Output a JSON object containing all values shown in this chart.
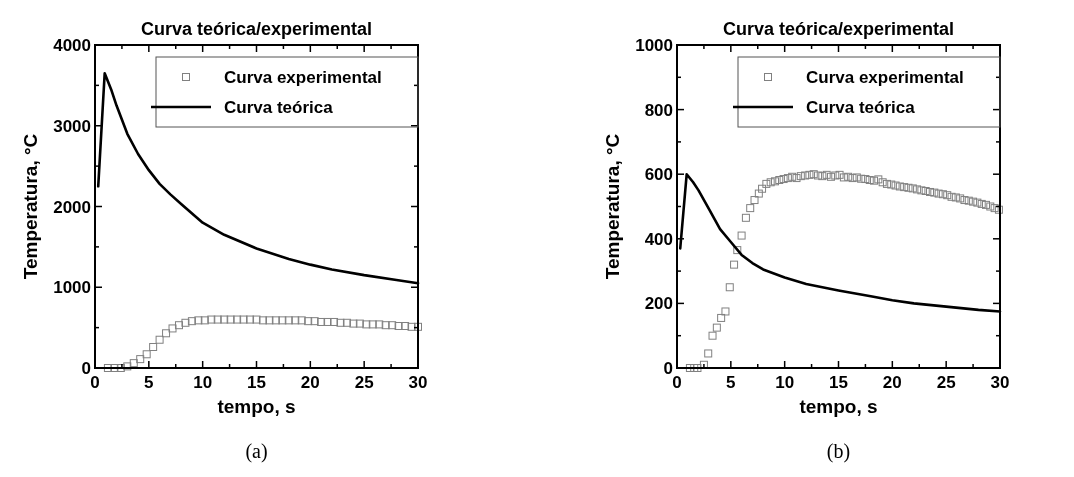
{
  "chart_data": [
    {
      "type": "line",
      "title": "Curva teórica/experimental",
      "xlabel": "tempo, s",
      "ylabel": "Temperatura, °C",
      "annotations": [
        "(a)"
      ],
      "xlim": [
        0,
        30
      ],
      "ylim": [
        0,
        4000
      ],
      "xticks": [
        0,
        {
          "value": 2.5,
          "label": null
        },
        5,
        {
          "value": 7.5,
          "label": null
        },
        10,
        {
          "value": 12.5,
          "label": null
        },
        15,
        {
          "value": 17.5,
          "label": null
        },
        20,
        {
          "value": 22.5,
          "label": null
        },
        25,
        {
          "value": 27.5,
          "label": null
        },
        30
      ],
      "yticks": [
        0,
        {
          "value": 500,
          "label": null
        },
        1000,
        {
          "value": 1500,
          "label": null
        },
        2000,
        {
          "value": 2500,
          "label": null
        },
        3000,
        {
          "value": 3500,
          "label": null
        },
        4000
      ],
      "legend": "top right",
      "grid": false,
      "series": [
        {
          "name": "Curva experimental",
          "type": "scatter",
          "marker": "square",
          "color": "#808080",
          "x": [
            1.2,
            1.8,
            2.4,
            3.0,
            3.6,
            4.2,
            4.8,
            5.4,
            6.0,
            6.6,
            7.2,
            7.8,
            8.4,
            9.0,
            9.6,
            10.2,
            10.8,
            11.4,
            12.0,
            12.6,
            13.2,
            13.8,
            14.4,
            15.0,
            15.6,
            16.2,
            16.8,
            17.4,
            18.0,
            18.6,
            19.2,
            19.8,
            20.4,
            21.0,
            21.6,
            22.2,
            22.8,
            23.4,
            24.0,
            24.6,
            25.2,
            25.8,
            26.4,
            27.0,
            27.6,
            28.2,
            28.8,
            29.4,
            30.0
          ],
          "values": [
            0,
            0,
            0,
            20,
            60,
            110,
            170,
            260,
            350,
            430,
            490,
            530,
            560,
            580,
            590,
            590,
            600,
            600,
            600,
            600,
            600,
            600,
            600,
            600,
            590,
            590,
            590,
            590,
            590,
            590,
            590,
            580,
            580,
            570,
            570,
            570,
            560,
            560,
            550,
            550,
            540,
            540,
            540,
            530,
            530,
            520,
            520,
            510,
            510
          ]
        },
        {
          "name": "Curva teórica",
          "line_style": "solid",
          "color": "#000000",
          "x": [
            0.3,
            0.9,
            1.5,
            2,
            3,
            4,
            5,
            6,
            7,
            8,
            10,
            12,
            15,
            18,
            20,
            22,
            25,
            28,
            30
          ],
          "values": [
            2250,
            3650,
            3450,
            3250,
            2900,
            2650,
            2450,
            2280,
            2150,
            2030,
            1800,
            1650,
            1480,
            1350,
            1280,
            1220,
            1150,
            1090,
            1050
          ]
        }
      ]
    },
    {
      "type": "line",
      "title": "Curva teórica/experimental",
      "xlabel": "tempo, s",
      "ylabel": "Temperatura, °C",
      "annotations": [
        "(b)"
      ],
      "xlim": [
        0,
        30
      ],
      "ylim": [
        0,
        1000
      ],
      "xticks": [
        0,
        {
          "value": 2.5,
          "label": null
        },
        5,
        {
          "value": 7.5,
          "label": null
        },
        10,
        {
          "value": 12.5,
          "label": null
        },
        15,
        {
          "value": 17.5,
          "label": null
        },
        20,
        {
          "value": 22.5,
          "label": null
        },
        25,
        {
          "value": 27.5,
          "label": null
        },
        30
      ],
      "yticks": [
        0,
        {
          "value": 100,
          "label": null
        },
        200,
        {
          "value": 300,
          "label": null
        },
        400,
        {
          "value": 500,
          "label": null
        },
        600,
        {
          "value": 700,
          "label": null
        },
        800,
        {
          "value": 900,
          "label": null
        },
        1000
      ],
      "legend": "top right",
      "grid": false,
      "series": [
        {
          "name": "Curva experimental",
          "type": "scatter",
          "marker": "square",
          "color": "#808080",
          "x": [
            1.2,
            1.6,
            1.9,
            2.5,
            2.9,
            3.3,
            3.7,
            4.1,
            4.5,
            4.9,
            5.3,
            5.6,
            6.0,
            6.4,
            6.8,
            7.2,
            7.6,
            7.9,
            8.3,
            8.7,
            9.1,
            9.5,
            9.9,
            10.3,
            10.7,
            11.1,
            11.5,
            11.9,
            12.3,
            12.7,
            13.1,
            13.5,
            13.9,
            14.3,
            14.7,
            15.1,
            15.5,
            15.9,
            16.3,
            16.7,
            17.1,
            17.5,
            17.9,
            18.3,
            18.7,
            19.1,
            19.5,
            19.9,
            20.3,
            20.7,
            21.1,
            21.5,
            21.9,
            22.3,
            22.7,
            23.1,
            23.5,
            23.9,
            24.3,
            24.7,
            25.1,
            25.5,
            25.9,
            26.3,
            26.7,
            27.1,
            27.5,
            27.9,
            28.3,
            28.7,
            29.1,
            29.5,
            29.9
          ],
          "values": [
            0,
            0,
            0,
            10,
            45,
            100,
            125,
            155,
            175,
            250,
            320,
            365,
            410,
            465,
            495,
            520,
            540,
            555,
            570,
            575,
            578,
            582,
            585,
            588,
            592,
            588,
            594,
            596,
            598,
            600,
            596,
            594,
            598,
            592,
            596,
            598,
            590,
            592,
            588,
            590,
            586,
            585,
            582,
            580,
            584,
            575,
            570,
            568,
            565,
            562,
            560,
            558,
            556,
            553,
            550,
            548,
            545,
            543,
            540,
            538,
            535,
            530,
            528,
            525,
            520,
            518,
            515,
            512,
            508,
            505,
            500,
            495,
            490
          ]
        },
        {
          "name": "Curva teórica",
          "line_style": "solid",
          "color": "#000000",
          "x": [
            0.3,
            0.9,
            1.5,
            2,
            3,
            4,
            5,
            6,
            7,
            8,
            10,
            12,
            15,
            18,
            20,
            22,
            25,
            28,
            30
          ],
          "values": [
            370,
            600,
            575,
            550,
            490,
            430,
            390,
            350,
            325,
            305,
            280,
            260,
            240,
            222,
            210,
            200,
            190,
            180,
            175
          ]
        }
      ]
    }
  ]
}
